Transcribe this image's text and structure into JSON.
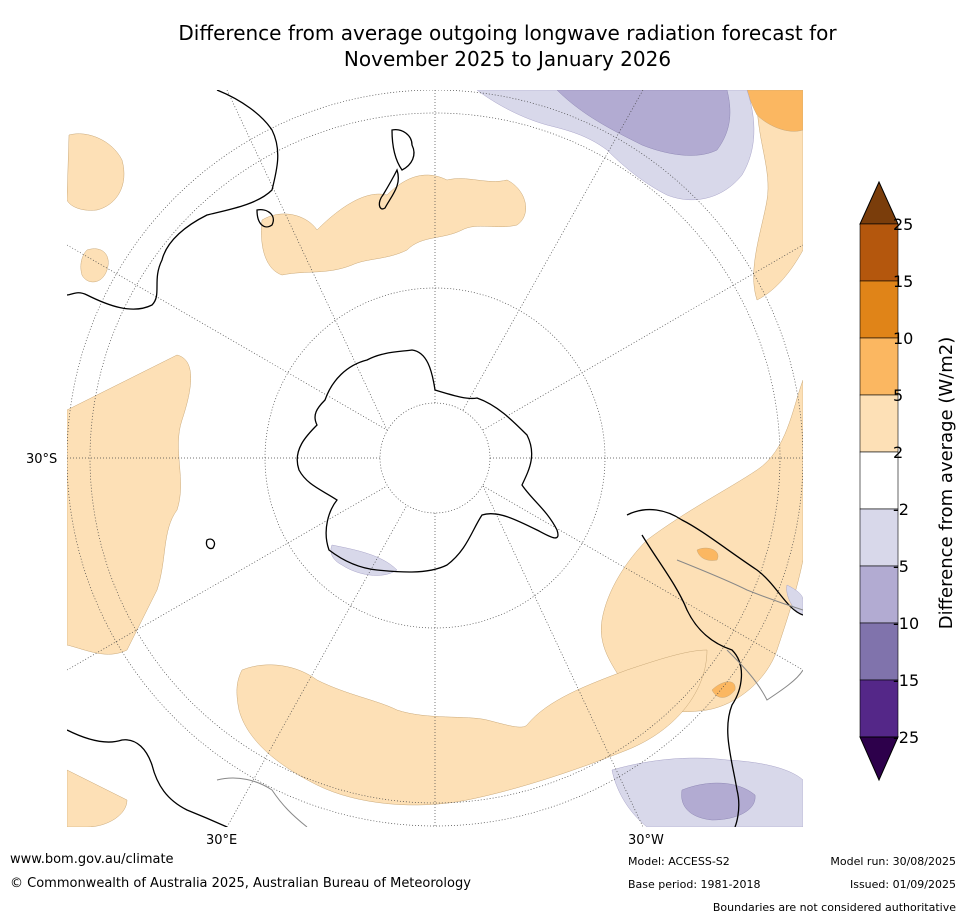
{
  "title_line1": "Difference from average outgoing longwave radiation forecast for",
  "title_line2": "November 2025 to January 2026",
  "grid_labels": {
    "lat": "30°S",
    "lon_east": "30°E",
    "lon_west": "30°W"
  },
  "colorbar": {
    "label": "Difference from average (W/m2)",
    "ticks": [
      "25",
      "15",
      "10",
      "5",
      "2",
      "-2",
      "-5",
      "-10",
      "-15",
      "-25"
    ],
    "colors": {
      "over": "#7a3d0b",
      "b15_25": "#b4570d",
      "b10_15": "#e08418",
      "b5_10": "#fbb761",
      "b2_5": "#fde0b6",
      "neutral": "#ffffff",
      "bm2_m5": "#d8d8ea",
      "bm5_m10": "#b2abd2",
      "bm10_m15": "#8073ac",
      "bm15_m25": "#542788",
      "under": "#2d004b"
    }
  },
  "footer": {
    "url": "www.bom.gov.au/climate",
    "copyright": "© Commonwealth of Australia 2025, Australian Bureau of Meteorology",
    "model": "Model: ACCESS-S2",
    "base_period": "Base period: 1981-2018",
    "model_run": "Model run: 30/08/2025",
    "issued": "Issued: 01/09/2025",
    "boundaries_note": "Boundaries are not considered authoritative"
  }
}
